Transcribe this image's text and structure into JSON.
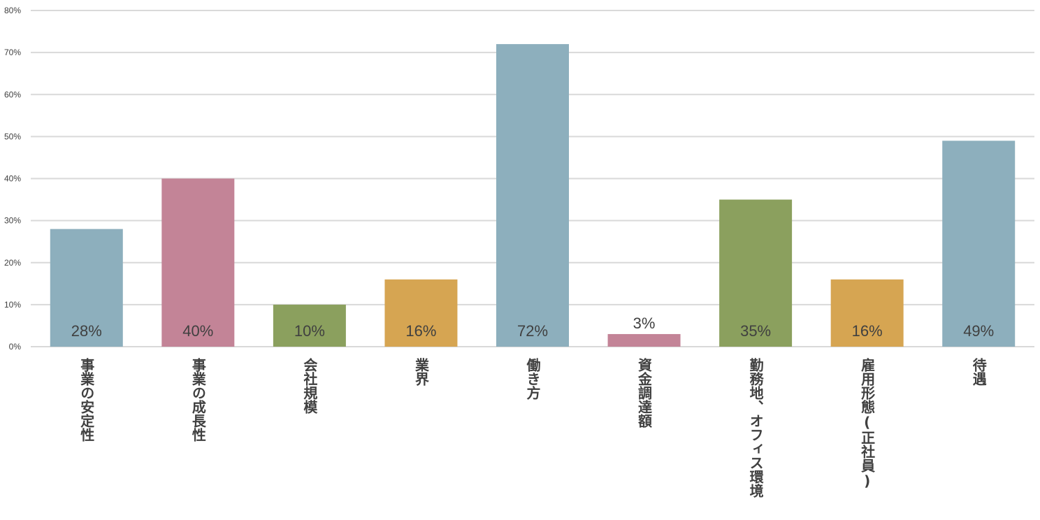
{
  "chart_data": {
    "type": "bar",
    "categories": [
      "事業の安定性",
      "事業の成長性",
      "会社規模",
      "業界",
      "働き方",
      "資金調達額",
      "勤務地、オフィス環境",
      "雇用形態(正社員)",
      "待遇"
    ],
    "values": [
      0.28,
      0.4,
      0.1,
      0.16,
      0.72,
      0.03,
      0.35,
      0.16,
      0.49
    ],
    "data_labels": [
      "28%",
      "40%",
      "10%",
      "16%",
      "72%",
      "3%",
      "35%",
      "16%",
      "49%"
    ],
    "colors": [
      "#8DAFBD",
      "#C38497",
      "#8BA05E",
      "#D6A552",
      "#8DAFBD",
      "#C38497",
      "#8BA05E",
      "#D6A552",
      "#8DAFBD"
    ],
    "ylim": [
      0,
      0.8
    ],
    "yticks": [
      0,
      0.1,
      0.2,
      0.3,
      0.4,
      0.5,
      0.6,
      0.7,
      0.8
    ],
    "ytick_labels": [
      "0%",
      "10%",
      "20%",
      "30%",
      "40%",
      "50%",
      "60%",
      "70%",
      "80%"
    ],
    "grid": true,
    "gridline_color": "#D9D9D9",
    "xlabel_orientation": "vertical",
    "title": "",
    "xlabel": "",
    "ylabel": ""
  }
}
